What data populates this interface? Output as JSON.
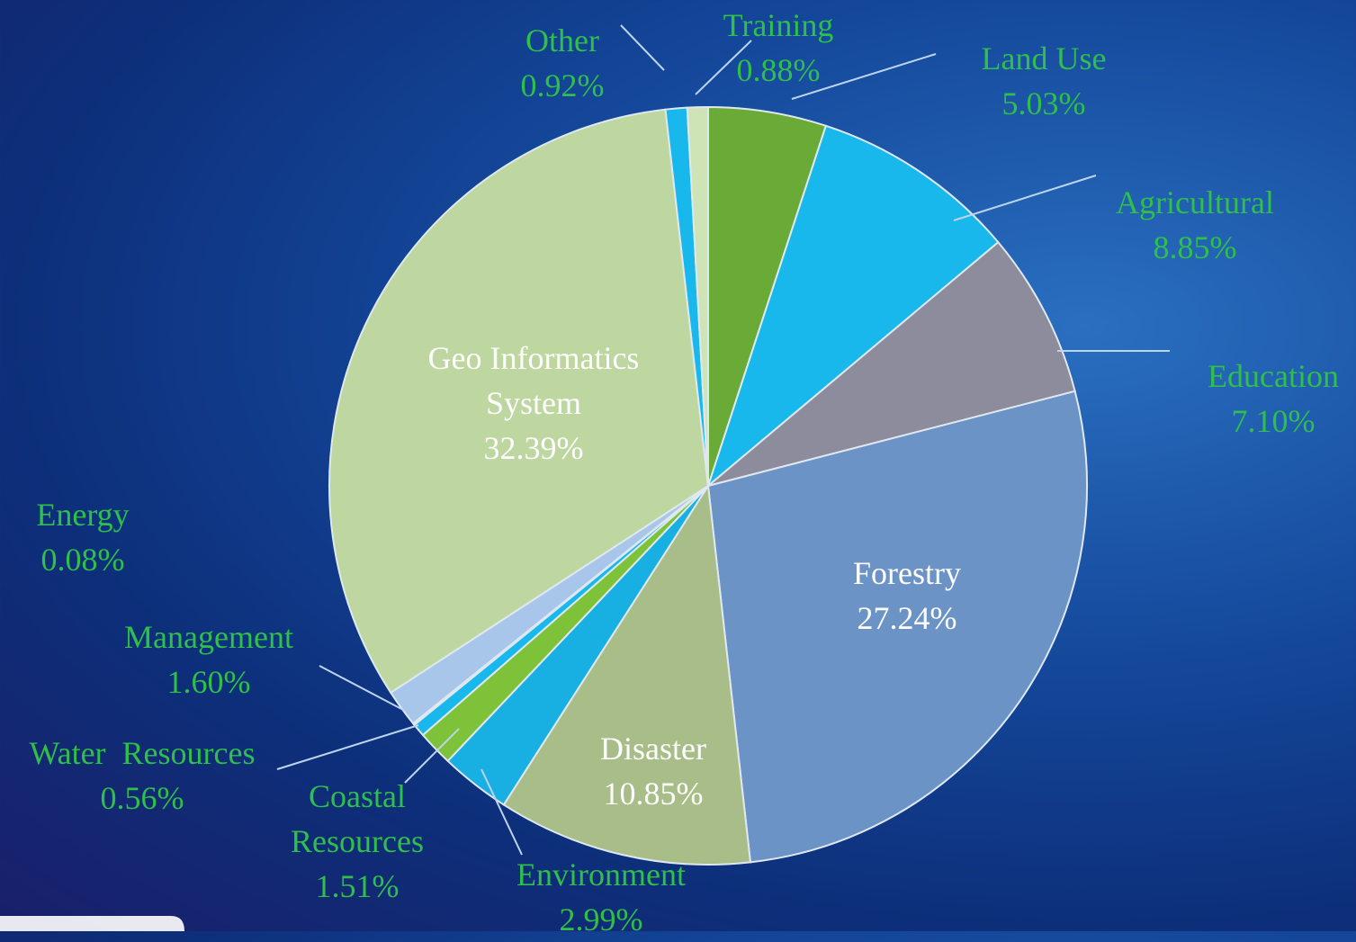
{
  "chart_data": {
    "type": "pie",
    "categories": [
      "Land Use",
      "Agricultural",
      "Education",
      "Forestry",
      "Disaster",
      "Environment",
      "Coastal Resources",
      "Water  Resources",
      "Energy",
      "Management",
      "Geo Informatics System",
      "Other",
      "Training"
    ],
    "values": [
      5.03,
      8.85,
      7.1,
      27.24,
      10.85,
      2.99,
      1.51,
      0.56,
      0.08,
      1.6,
      32.39,
      0.92,
      0.88
    ],
    "value_labels": [
      "5.03%",
      "8.85%",
      "7.10%",
      "27.24%",
      "10.85%",
      "2.99%",
      "1.51%",
      "0.56%",
      "0.08%",
      "1.60%",
      "32.39%",
      "0.92%",
      "0.88%"
    ],
    "colors": [
      "#6aab38",
      "#18b8ec",
      "#8d8c9c",
      "#6c93c6",
      "#a8bd88",
      "#18b0e2",
      "#7ec23a",
      "#18b8ec",
      "#b0b0b0",
      "#a8c6ea",
      "#bed7a0",
      "#18b8ec",
      "#cfe4b6"
    ]
  }
}
